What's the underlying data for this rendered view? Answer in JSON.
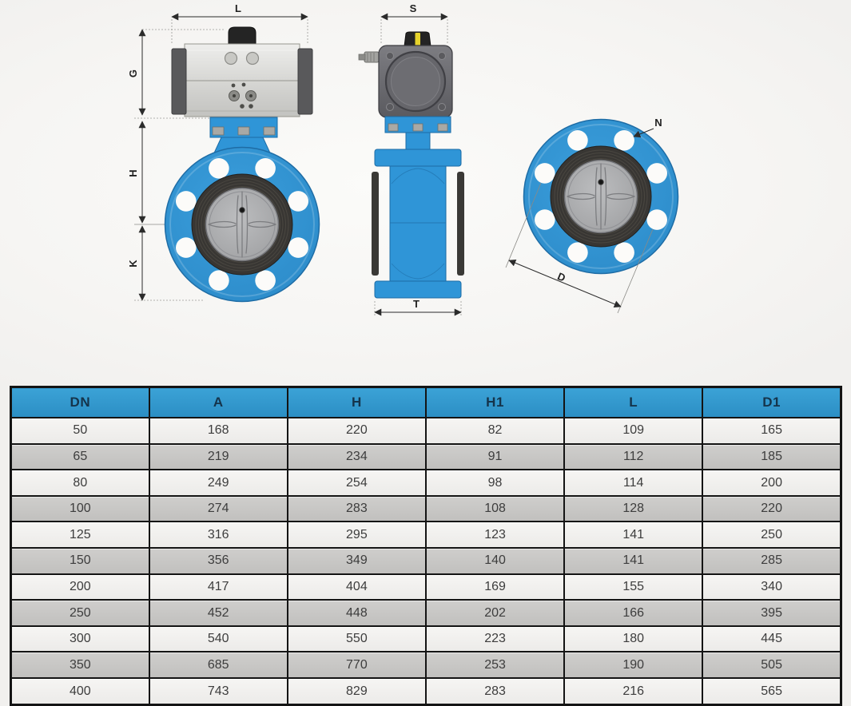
{
  "diagram": {
    "dimension_labels": {
      "L": "L",
      "G": "G",
      "H": "H",
      "K": "K",
      "S": "S",
      "T": "T",
      "N": "N",
      "D": "D"
    },
    "colors": {
      "valve_blue": "#2f95d7",
      "valve_blue_edge": "#1e6ca5",
      "actuator_light_gray": "#d9d9d6",
      "actuator_end_cap": "#59595b",
      "actuator_side_gray": "#6b6b70",
      "seat_black": "#383633",
      "disc_gray": "#abacae",
      "knob_black": "#242424",
      "indicator_yellow": "#e6d32b",
      "table_header_blue": "#3096cb",
      "row_light": "#f1f0ee",
      "row_dark": "#c7c6c4"
    }
  },
  "table": {
    "columns": [
      "DN",
      "A",
      "H",
      "H1",
      "L",
      "D1"
    ],
    "rows": [
      [
        "50",
        "168",
        "220",
        "82",
        "109",
        "165"
      ],
      [
        "65",
        "219",
        "234",
        "91",
        "112",
        "185"
      ],
      [
        "80",
        "249",
        "254",
        "98",
        "114",
        "200"
      ],
      [
        "100",
        "274",
        "283",
        "108",
        "128",
        "220"
      ],
      [
        "125",
        "316",
        "295",
        "123",
        "141",
        "250"
      ],
      [
        "150",
        "356",
        "349",
        "140",
        "141",
        "285"
      ],
      [
        "200",
        "417",
        "404",
        "169",
        "155",
        "340"
      ],
      [
        "250",
        "452",
        "448",
        "202",
        "166",
        "395"
      ],
      [
        "300",
        "540",
        "550",
        "223",
        "180",
        "445"
      ],
      [
        "350",
        "685",
        "770",
        "253",
        "190",
        "505"
      ],
      [
        "400",
        "743",
        "829",
        "283",
        "216",
        "565"
      ]
    ]
  }
}
